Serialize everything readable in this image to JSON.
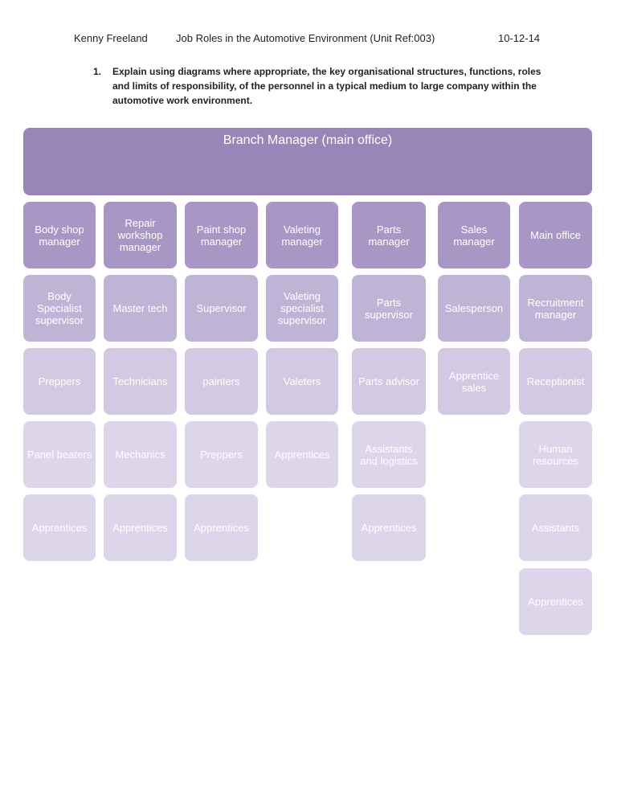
{
  "header": {
    "author": "Kenny Freeland",
    "title": "Job Roles in the Automotive Environment (Unit Ref:003)",
    "date": "10-12-14"
  },
  "question": {
    "number": "1.",
    "text": "Explain using diagrams where appropriate, the key organisational structures, functions, roles and limits of responsibility, of the personnel in a typical medium to large company within the automotive work environment."
  },
  "chart": {
    "top": "Branch Manager (main office)",
    "columns": [
      [
        "Body shop manager",
        "Body Specialist supervisor",
        "Preppers",
        "Panel beaters",
        "Apprentices"
      ],
      [
        "Repair workshop manager",
        "Master tech",
        "Technicians",
        "Mechanics",
        "Apprentices"
      ],
      [
        "Paint shop manager",
        "Supervisor",
        "painters",
        "Preppers",
        "Apprentices"
      ],
      [
        "Valeting manager",
        "Valeting specialist supervisor",
        "Valeters",
        "Apprentices"
      ],
      [
        "Parts manager",
        "Parts supervisor",
        "Parts advisor",
        "Assistants and logistics",
        "Apprentices"
      ],
      [
        "Sales manager",
        "Salesperson",
        "Apprentice sales"
      ],
      [
        "Main office",
        "Recruitment manager",
        "Receptionist",
        "Human resources",
        "Assistants",
        "Apprentices"
      ]
    ]
  }
}
